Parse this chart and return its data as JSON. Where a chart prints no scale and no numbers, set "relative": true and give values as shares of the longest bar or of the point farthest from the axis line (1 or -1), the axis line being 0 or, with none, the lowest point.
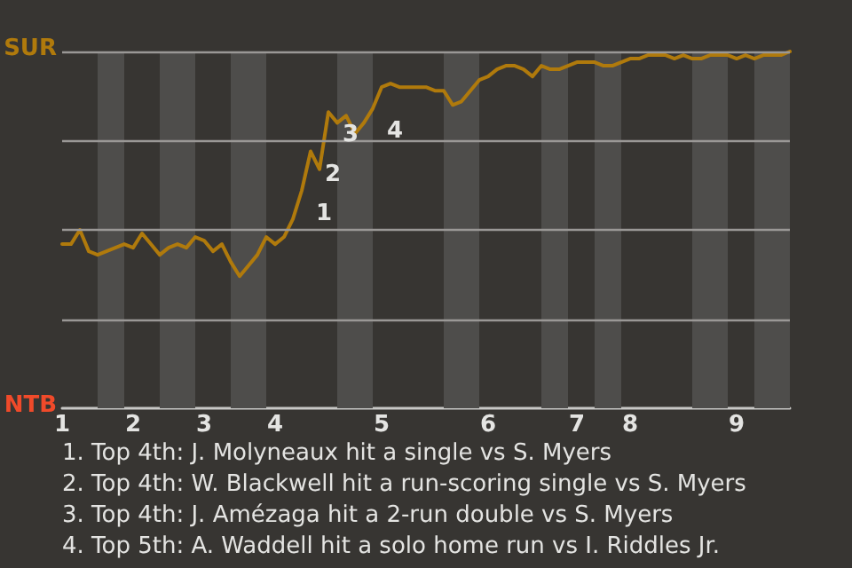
{
  "chart_data": {
    "type": "line",
    "relative": true,
    "categories": [
      "1",
      null,
      null,
      null,
      null,
      null,
      null,
      null,
      "2",
      null,
      null,
      null,
      null,
      null,
      null,
      null,
      "3",
      null,
      null,
      null,
      null,
      null,
      null,
      null,
      "4",
      null,
      null,
      null,
      null,
      null,
      null,
      null,
      null,
      null,
      null,
      null,
      "5",
      null,
      null,
      null,
      null,
      null,
      null,
      null,
      null,
      null,
      null,
      null,
      "6",
      null,
      null,
      null,
      null,
      null,
      null,
      null,
      null,
      null,
      "7",
      null,
      null,
      null,
      null,
      null,
      "8",
      null,
      null,
      null,
      null,
      null,
      null,
      null,
      null,
      null,
      null,
      null,
      "9",
      null,
      null,
      null,
      null,
      null,
      null
    ],
    "series": [
      {
        "color": "#b07a0c",
        "values": [
          0.46,
          0.46,
          0.5,
          0.44,
          0.43,
          0.44,
          0.45,
          0.46,
          0.45,
          0.49,
          0.46,
          0.43,
          0.45,
          0.46,
          0.45,
          0.48,
          0.47,
          0.44,
          0.46,
          0.41,
          0.37,
          0.4,
          0.43,
          0.48,
          0.46,
          0.48,
          0.53,
          0.61,
          0.72,
          0.67,
          0.83,
          0.8,
          0.82,
          0.77,
          0.8,
          0.84,
          0.9,
          0.91,
          0.9,
          0.9,
          0.9,
          0.9,
          0.89,
          0.89,
          0.85,
          0.86,
          0.89,
          0.92,
          0.93,
          0.95,
          0.96,
          0.96,
          0.95,
          0.93,
          0.96,
          0.95,
          0.95,
          0.96,
          0.97,
          0.97,
          0.97,
          0.96,
          0.96,
          0.97,
          0.98,
          0.98,
          0.99,
          0.99,
          0.99,
          0.98,
          0.99,
          0.98,
          0.98,
          0.99,
          0.99,
          0.99,
          0.98,
          0.99,
          0.98,
          0.99,
          0.99,
          0.99,
          1
        ],
        "name": null
      }
    ],
    "marker": "none",
    "line_style": "solid",
    "ref_lines": [
      {
        "axis": "y",
        "value": 0.25,
        "color": "#9a9896"
      },
      {
        "axis": "y",
        "value": 0.5,
        "color": "#9a9896"
      },
      {
        "axis": "y",
        "value": 0.75,
        "color": "#9a9896"
      },
      {
        "axis": "y",
        "value": 1,
        "color": "#9a9896"
      }
    ],
    "annotations": [
      "SUR",
      "NTB",
      "1",
      "2",
      "3",
      "4",
      "1. Top 4th: J. Molyneaux hit a single vs S. Myers",
      "2. Top 4th: W. Blackwell hit a run-scoring single vs S. Myers",
      "3. Top 4th: J. Amézaga hit a 2-run double vs S. Myers",
      "4. Top 5th: A. Waddell hit a solo home run vs I. Riddles Jr."
    ]
  }
}
